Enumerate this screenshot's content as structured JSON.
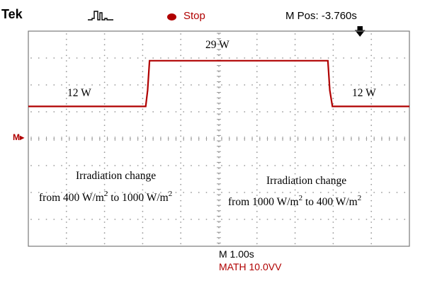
{
  "header": {
    "brand": "Tek",
    "trigger_icon": "trigger-waveform-icon",
    "run_state": "Stop",
    "run_state_icon": "stop-dot-icon",
    "horizontal_position": "M Pos: -3.760s",
    "trigger_position_icon": "down-arrow-icon"
  },
  "footer": {
    "timebase": "M 1.00s",
    "math_scale": "MATH 10.0VV"
  },
  "ground_marker": "M▸",
  "annotations": {
    "left_level": "12 W",
    "mid_level": "29 W",
    "right_level": "12 W",
    "change1_title": "Irradiation change",
    "change1_from": "from 400 W/m",
    "change1_exp1": "2",
    "change1_to": " to 1000 W/m",
    "change1_exp2": "2",
    "change2_title": "Irradiation change",
    "change2_from": "from 1000 W/m",
    "change2_exp1": "2",
    "change2_to": " to 400 W/m",
    "change2_exp2": "2"
  },
  "colors": {
    "trace": "#b00000",
    "grid": "#9a9a9a",
    "text": "#000000"
  },
  "chart_data": {
    "type": "line",
    "title": "",
    "xlabel": "",
    "ylabel": "",
    "x_unit": "s",
    "xlim": [
      0,
      10
    ],
    "ylim": [
      -40,
      40
    ],
    "grid": true,
    "series": [
      {
        "x": [
          0,
          3.08,
          3.13,
          3.18,
          5.2,
          7.86,
          7.91,
          7.98,
          10
        ],
        "values": [
          12,
          12,
          18,
          29,
          29,
          29,
          18,
          12,
          12
        ]
      }
    ]
  }
}
